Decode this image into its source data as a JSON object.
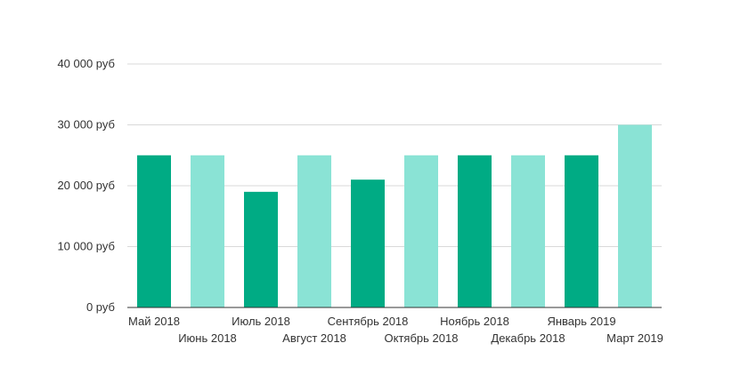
{
  "chart_data": {
    "type": "bar",
    "title": "",
    "xlabel": "",
    "ylabel": "",
    "categories": [
      "Май 2018",
      "Июнь 2018",
      "Июль 2018",
      "Август 2018",
      "Сентябрь 2018",
      "Октябрь 2018",
      "Ноябрь 2018",
      "Декабрь 2018",
      "Январь 2019",
      "Март 2019"
    ],
    "values": [
      25000,
      25000,
      19000,
      25000,
      21000,
      25000,
      25000,
      25000,
      25000,
      30000
    ],
    "bar_colors": [
      "#00ab84",
      "#8ae3d5",
      "#00ab84",
      "#8ae3d5",
      "#00ab84",
      "#8ae3d5",
      "#00ab84",
      "#8ae3d5",
      "#00ab84",
      "#8ae3d5"
    ],
    "ylim": [
      0,
      40000
    ],
    "y_ticks": [
      {
        "value": 0,
        "label": "0 руб"
      },
      {
        "value": 10000,
        "label": "10 000 руб"
      },
      {
        "value": 20000,
        "label": "20 000 руб"
      },
      {
        "value": 30000,
        "label": "30 000 руб"
      },
      {
        "value": 40000,
        "label": "40 000 руб"
      }
    ],
    "grid": true,
    "legend": "none",
    "colors": {
      "gridline": "#d9d9d9",
      "axis": "#333333",
      "text": "#333333"
    }
  }
}
